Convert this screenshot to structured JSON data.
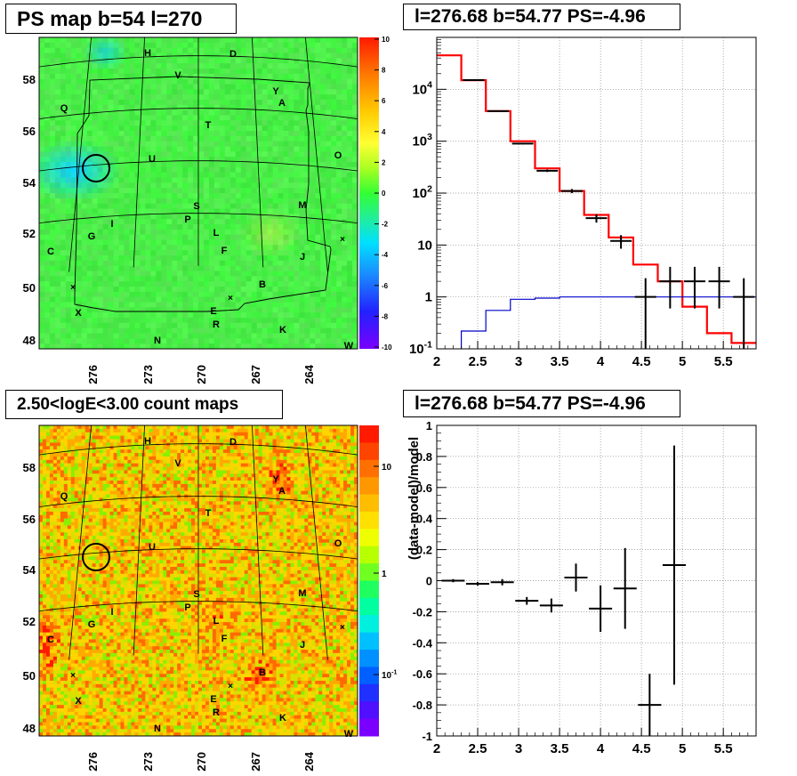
{
  "panels": {
    "tl_title": "PS map b=54 l=270",
    "tr_title": "l=276.68 b=54.77 PS=-4.96",
    "bl_title": "2.50<logE<3.00 count maps",
    "br_title": "l=276.68 b=54.77 PS=-4.96"
  },
  "maps": {
    "lat_labels": [
      "58",
      "56",
      "54",
      "52",
      "50",
      "48"
    ],
    "lon_labels": [
      "276",
      "273",
      "270",
      "267",
      "264"
    ],
    "sources": [
      "H",
      "D",
      "V",
      "Y",
      "A",
      "Q",
      "T",
      "O",
      "U",
      "S",
      "M",
      "P",
      "I",
      "G",
      "L",
      "C",
      "F",
      "J",
      "B",
      "X",
      "E",
      "R",
      "K",
      "N",
      "W"
    ],
    "ps_colorbar_labels": [
      "10",
      "8",
      "6",
      "4",
      "2",
      "0",
      "-2",
      "-4",
      "-6",
      "-8",
      "-10"
    ],
    "count_colorbar_labels": [
      "10",
      "1",
      "10^-1"
    ]
  },
  "chart_data": [
    {
      "type": "line",
      "panel": "top-right",
      "title": "l=276.68 b=54.77 PS=-4.96",
      "xlim": [
        2,
        5.9
      ],
      "ylim": [
        0.1,
        100000
      ],
      "yscale": "log",
      "grid": true,
      "x_ticks": [
        "2",
        "2.5",
        "3",
        "3.5",
        "4",
        "4.5",
        "5",
        "5.5"
      ],
      "y_ticks": [
        "10^-1",
        "1",
        "10",
        "10^2",
        "10^3",
        "10^4"
      ],
      "series": [
        {
          "style": "histogram",
          "color": "#ff0000",
          "edges": [
            2.0,
            2.3,
            2.6,
            2.9,
            3.2,
            3.5,
            3.8,
            4.1,
            4.4,
            4.7,
            5.0,
            5.3,
            5.6,
            5.9
          ],
          "values": [
            45000,
            15000,
            3800,
            1000,
            300,
            110,
            38,
            14,
            4.2,
            2.0,
            0.65,
            0.2,
            0.13
          ]
        },
        {
          "style": "histogram",
          "color": "#0000cc",
          "edges": [
            2.0,
            2.3,
            2.6,
            2.9,
            3.2,
            3.5,
            3.8,
            4.1,
            4.4,
            4.7,
            5.0,
            5.3,
            5.6,
            5.9
          ],
          "values": [
            0.05,
            0.22,
            0.55,
            0.9,
            0.95,
            1.0,
            1.0,
            1.0,
            1.0,
            1.0,
            1.0,
            1.0,
            1.0
          ]
        },
        {
          "style": "errorbar",
          "color": "#000000",
          "points": [
            {
              "x": 2.45,
              "y": 15000,
              "ylo": 14800,
              "yhi": 15200
            },
            {
              "x": 2.75,
              "y": 3800,
              "ylo": 3700,
              "yhi": 3900
            },
            {
              "x": 3.05,
              "y": 900,
              "ylo": 870,
              "yhi": 930
            },
            {
              "x": 3.35,
              "y": 270,
              "ylo": 255,
              "yhi": 285
            },
            {
              "x": 3.65,
              "y": 110,
              "ylo": 100,
              "yhi": 120
            },
            {
              "x": 3.95,
              "y": 33,
              "ylo": 27,
              "yhi": 39
            },
            {
              "x": 4.25,
              "y": 12,
              "ylo": 8.5,
              "yhi": 15.5
            },
            {
              "x": 4.55,
              "y": 1.0,
              "ylo": 0.1,
              "yhi": 2.3
            },
            {
              "x": 4.85,
              "y": 2.0,
              "ylo": 0.6,
              "yhi": 3.8
            },
            {
              "x": 5.15,
              "y": 2.0,
              "ylo": 0.6,
              "yhi": 3.8
            },
            {
              "x": 5.45,
              "y": 2.0,
              "ylo": 0.6,
              "yhi": 3.8
            },
            {
              "x": 5.75,
              "y": 1.0,
              "ylo": 0.1,
              "yhi": 2.3
            }
          ]
        }
      ]
    },
    {
      "type": "scatter",
      "panel": "bottom-right",
      "title": "l=276.68 b=54.77 PS=-4.96",
      "ylabel": "(data-model)/model",
      "xlim": [
        2,
        5.9
      ],
      "ylim": [
        -1,
        1
      ],
      "grid": true,
      "x_ticks": [
        "2",
        "2.5",
        "3",
        "3.5",
        "4",
        "4.5",
        "5",
        "5.5"
      ],
      "y_ticks": [
        "-1",
        "-0.8",
        "-0.6",
        "-0.4",
        "-0.2",
        "0",
        "0.2",
        "0.4",
        "0.6",
        "0.8",
        "1"
      ],
      "points": [
        {
          "x": 2.2,
          "y": 0.0,
          "err": 0.01
        },
        {
          "x": 2.5,
          "y": -0.02,
          "err": 0.012
        },
        {
          "x": 2.8,
          "y": -0.01,
          "err": 0.02
        },
        {
          "x": 3.1,
          "y": -0.13,
          "err": 0.025
        },
        {
          "x": 3.4,
          "y": -0.16,
          "err": 0.045
        },
        {
          "x": 3.7,
          "y": 0.02,
          "err": 0.09
        },
        {
          "x": 4.0,
          "y": -0.18,
          "err": 0.15
        },
        {
          "x": 4.3,
          "y": -0.05,
          "err": 0.26
        },
        {
          "x": 4.6,
          "y": -0.8,
          "err": 0.2
        },
        {
          "x": 4.9,
          "y": 0.1,
          "err": 0.77
        }
      ]
    }
  ]
}
